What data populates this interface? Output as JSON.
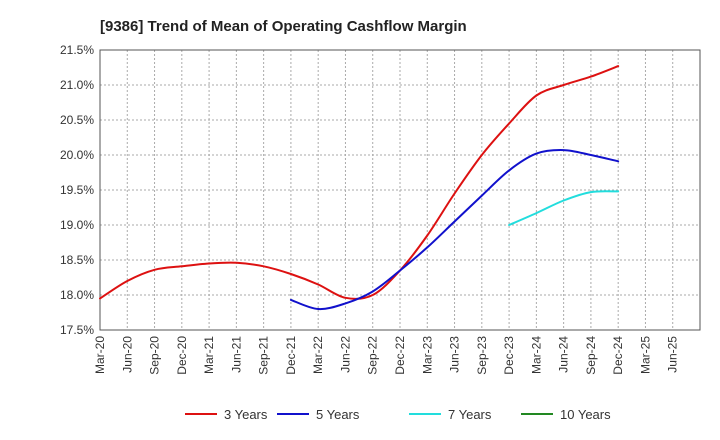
{
  "chart_data": {
    "type": "line",
    "title": "[9386]  Trend of Mean of Operating Cashflow Margin",
    "xlabel": "",
    "ylabel": "",
    "ylim": [
      17.5,
      21.5
    ],
    "yticks": [
      "17.5%",
      "18.0%",
      "18.5%",
      "19.0%",
      "19.5%",
      "20.0%",
      "20.5%",
      "21.0%",
      "21.5%"
    ],
    "ytick_values": [
      17.5,
      18.0,
      18.5,
      19.0,
      19.5,
      20.0,
      20.5,
      21.0,
      21.5
    ],
    "categories": [
      "Mar-20",
      "Jun-20",
      "Sep-20",
      "Dec-20",
      "Mar-21",
      "Jun-21",
      "Sep-21",
      "Dec-21",
      "Mar-22",
      "Jun-22",
      "Sep-22",
      "Dec-22",
      "Mar-23",
      "Jun-23",
      "Sep-23",
      "Dec-23",
      "Mar-24",
      "Jun-24",
      "Sep-24",
      "Dec-24",
      "Mar-25",
      "Jun-25"
    ],
    "grid": true,
    "legend_position": "bottom",
    "series": [
      {
        "name": "3 Years",
        "color": "#dd1111",
        "values": [
          17.95,
          18.2,
          18.36,
          18.41,
          18.45,
          18.46,
          18.41,
          18.3,
          18.15,
          17.96,
          18.0,
          18.35,
          18.85,
          19.45,
          20.0,
          20.45,
          20.85,
          21.0,
          21.12,
          21.27,
          null,
          null
        ]
      },
      {
        "name": "5 Years",
        "color": "#1111cc",
        "values": [
          null,
          null,
          null,
          null,
          null,
          null,
          null,
          17.93,
          17.8,
          17.88,
          18.05,
          18.35,
          18.68,
          19.05,
          19.42,
          19.78,
          20.02,
          20.07,
          20.0,
          19.91,
          null,
          null
        ]
      },
      {
        "name": "7 Years",
        "color": "#22dddd",
        "values": [
          null,
          null,
          null,
          null,
          null,
          null,
          null,
          null,
          null,
          null,
          null,
          null,
          null,
          null,
          null,
          19.0,
          19.17,
          19.35,
          19.47,
          19.48,
          null,
          null
        ]
      },
      {
        "name": "10 Years",
        "color": "#228822",
        "values": [
          null,
          null,
          null,
          null,
          null,
          null,
          null,
          null,
          null,
          null,
          null,
          null,
          null,
          null,
          null,
          null,
          null,
          null,
          null,
          null,
          null,
          null
        ]
      }
    ]
  }
}
